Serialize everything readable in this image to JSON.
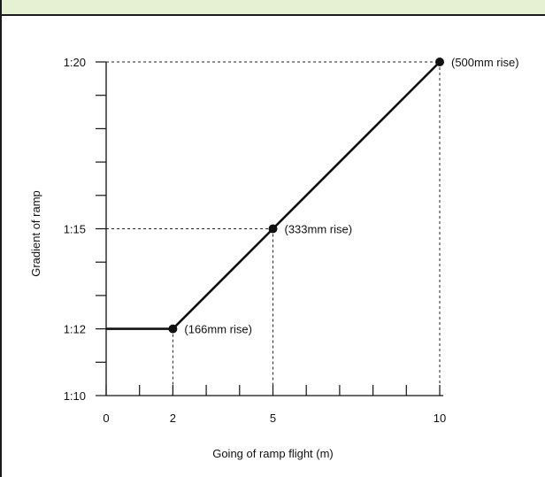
{
  "chart_data": {
    "type": "line",
    "xlabel": "Going of ramp flight (m)",
    "ylabel": "Gradient of ramp",
    "x_ticks": [
      {
        "value": 0,
        "label": "0"
      },
      {
        "value": 2,
        "label": "2"
      },
      {
        "value": 5,
        "label": "5"
      },
      {
        "value": 10,
        "label": "10"
      }
    ],
    "x_minor_ticks": [
      1,
      3,
      4,
      6,
      7,
      8,
      9
    ],
    "y_ticks": [
      {
        "value": 10,
        "label": "1:10"
      },
      {
        "value": 12,
        "label": "1:12"
      },
      {
        "value": 15,
        "label": "1:15"
      },
      {
        "value": 20,
        "label": "1:20"
      }
    ],
    "y_minor_ticks": [
      11,
      13,
      14,
      16,
      17,
      18,
      19
    ],
    "xlim": [
      0,
      10
    ],
    "ylim": [
      10,
      20
    ],
    "series": [
      {
        "points": [
          {
            "x": 0,
            "y": 12
          },
          {
            "x": 2,
            "y": 12
          },
          {
            "x": 5,
            "y": 15
          },
          {
            "x": 10,
            "y": 20
          }
        ]
      }
    ],
    "markers": [
      {
        "x": 2,
        "y": 12,
        "label": "(166mm rise)"
      },
      {
        "x": 5,
        "y": 15,
        "label": "(333mm rise)"
      },
      {
        "x": 10,
        "y": 20,
        "label": "(500mm rise)"
      }
    ]
  }
}
